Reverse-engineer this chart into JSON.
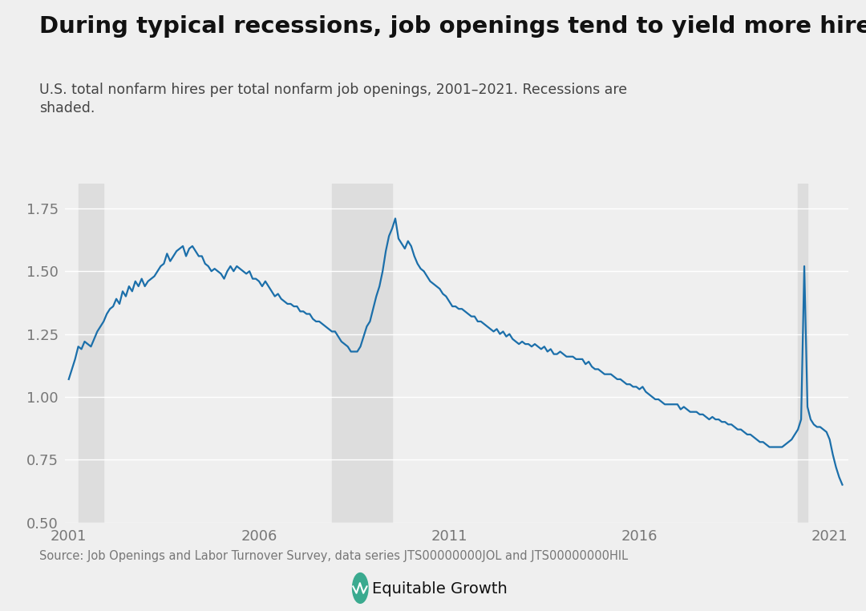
{
  "title": "During typical recessions, job openings tend to yield more hires",
  "subtitle": "U.S. total nonfarm hires per total nonfarm job openings, 2001–2021. Recessions are\nshaded.",
  "source": "Source: Job Openings and Labor Turnover Survey, data series JTS00000000JOL and JTS00000000HIL",
  "line_color": "#1b6faa",
  "line_width": 1.6,
  "recession_color": "#dddddd",
  "background_color": "#efefef",
  "recessions": [
    {
      "start": 2001.25,
      "end": 2001.9167
    },
    {
      "start": 2007.9167,
      "end": 2009.5
    },
    {
      "start": 2020.1667,
      "end": 2020.4167
    }
  ],
  "ylim": [
    0.5,
    1.85
  ],
  "yticks": [
    0.5,
    0.75,
    1.0,
    1.25,
    1.5,
    1.75
  ],
  "xlim": [
    2000.9,
    2021.5
  ],
  "xticks": [
    2001,
    2006,
    2011,
    2016,
    2021
  ],
  "data": [
    [
      2001.0,
      1.07
    ],
    [
      2001.0833,
      1.11
    ],
    [
      2001.1667,
      1.15
    ],
    [
      2001.25,
      1.2
    ],
    [
      2001.3333,
      1.19
    ],
    [
      2001.4167,
      1.22
    ],
    [
      2001.5,
      1.21
    ],
    [
      2001.5833,
      1.2
    ],
    [
      2001.6667,
      1.23
    ],
    [
      2001.75,
      1.26
    ],
    [
      2001.8333,
      1.28
    ],
    [
      2001.9167,
      1.3
    ],
    [
      2002.0,
      1.33
    ],
    [
      2002.0833,
      1.35
    ],
    [
      2002.1667,
      1.36
    ],
    [
      2002.25,
      1.39
    ],
    [
      2002.3333,
      1.37
    ],
    [
      2002.4167,
      1.42
    ],
    [
      2002.5,
      1.4
    ],
    [
      2002.5833,
      1.44
    ],
    [
      2002.6667,
      1.42
    ],
    [
      2002.75,
      1.46
    ],
    [
      2002.8333,
      1.44
    ],
    [
      2002.9167,
      1.47
    ],
    [
      2003.0,
      1.44
    ],
    [
      2003.0833,
      1.46
    ],
    [
      2003.1667,
      1.47
    ],
    [
      2003.25,
      1.48
    ],
    [
      2003.3333,
      1.5
    ],
    [
      2003.4167,
      1.52
    ],
    [
      2003.5,
      1.53
    ],
    [
      2003.5833,
      1.57
    ],
    [
      2003.6667,
      1.54
    ],
    [
      2003.75,
      1.56
    ],
    [
      2003.8333,
      1.58
    ],
    [
      2003.9167,
      1.59
    ],
    [
      2004.0,
      1.6
    ],
    [
      2004.0833,
      1.56
    ],
    [
      2004.1667,
      1.59
    ],
    [
      2004.25,
      1.6
    ],
    [
      2004.3333,
      1.58
    ],
    [
      2004.4167,
      1.56
    ],
    [
      2004.5,
      1.56
    ],
    [
      2004.5833,
      1.53
    ],
    [
      2004.6667,
      1.52
    ],
    [
      2004.75,
      1.5
    ],
    [
      2004.8333,
      1.51
    ],
    [
      2004.9167,
      1.5
    ],
    [
      2005.0,
      1.49
    ],
    [
      2005.0833,
      1.47
    ],
    [
      2005.1667,
      1.5
    ],
    [
      2005.25,
      1.52
    ],
    [
      2005.3333,
      1.5
    ],
    [
      2005.4167,
      1.52
    ],
    [
      2005.5,
      1.51
    ],
    [
      2005.5833,
      1.5
    ],
    [
      2005.6667,
      1.49
    ],
    [
      2005.75,
      1.5
    ],
    [
      2005.8333,
      1.47
    ],
    [
      2005.9167,
      1.47
    ],
    [
      2006.0,
      1.46
    ],
    [
      2006.0833,
      1.44
    ],
    [
      2006.1667,
      1.46
    ],
    [
      2006.25,
      1.44
    ],
    [
      2006.3333,
      1.42
    ],
    [
      2006.4167,
      1.4
    ],
    [
      2006.5,
      1.41
    ],
    [
      2006.5833,
      1.39
    ],
    [
      2006.6667,
      1.38
    ],
    [
      2006.75,
      1.37
    ],
    [
      2006.8333,
      1.37
    ],
    [
      2006.9167,
      1.36
    ],
    [
      2007.0,
      1.36
    ],
    [
      2007.0833,
      1.34
    ],
    [
      2007.1667,
      1.34
    ],
    [
      2007.25,
      1.33
    ],
    [
      2007.3333,
      1.33
    ],
    [
      2007.4167,
      1.31
    ],
    [
      2007.5,
      1.3
    ],
    [
      2007.5833,
      1.3
    ],
    [
      2007.6667,
      1.29
    ],
    [
      2007.75,
      1.28
    ],
    [
      2007.8333,
      1.27
    ],
    [
      2007.9167,
      1.26
    ],
    [
      2008.0,
      1.26
    ],
    [
      2008.0833,
      1.24
    ],
    [
      2008.1667,
      1.22
    ],
    [
      2008.25,
      1.21
    ],
    [
      2008.3333,
      1.2
    ],
    [
      2008.4167,
      1.18
    ],
    [
      2008.5,
      1.18
    ],
    [
      2008.5833,
      1.18
    ],
    [
      2008.6667,
      1.2
    ],
    [
      2008.75,
      1.24
    ],
    [
      2008.8333,
      1.28
    ],
    [
      2008.9167,
      1.3
    ],
    [
      2009.0,
      1.35
    ],
    [
      2009.0833,
      1.4
    ],
    [
      2009.1667,
      1.44
    ],
    [
      2009.25,
      1.5
    ],
    [
      2009.3333,
      1.58
    ],
    [
      2009.4167,
      1.64
    ],
    [
      2009.5,
      1.67
    ],
    [
      2009.5833,
      1.71
    ],
    [
      2009.6667,
      1.63
    ],
    [
      2009.75,
      1.61
    ],
    [
      2009.8333,
      1.59
    ],
    [
      2009.9167,
      1.62
    ],
    [
      2010.0,
      1.6
    ],
    [
      2010.0833,
      1.56
    ],
    [
      2010.1667,
      1.53
    ],
    [
      2010.25,
      1.51
    ],
    [
      2010.3333,
      1.5
    ],
    [
      2010.4167,
      1.48
    ],
    [
      2010.5,
      1.46
    ],
    [
      2010.5833,
      1.45
    ],
    [
      2010.6667,
      1.44
    ],
    [
      2010.75,
      1.43
    ],
    [
      2010.8333,
      1.41
    ],
    [
      2010.9167,
      1.4
    ],
    [
      2011.0,
      1.38
    ],
    [
      2011.0833,
      1.36
    ],
    [
      2011.1667,
      1.36
    ],
    [
      2011.25,
      1.35
    ],
    [
      2011.3333,
      1.35
    ],
    [
      2011.4167,
      1.34
    ],
    [
      2011.5,
      1.33
    ],
    [
      2011.5833,
      1.32
    ],
    [
      2011.6667,
      1.32
    ],
    [
      2011.75,
      1.3
    ],
    [
      2011.8333,
      1.3
    ],
    [
      2011.9167,
      1.29
    ],
    [
      2012.0,
      1.28
    ],
    [
      2012.0833,
      1.27
    ],
    [
      2012.1667,
      1.26
    ],
    [
      2012.25,
      1.27
    ],
    [
      2012.3333,
      1.25
    ],
    [
      2012.4167,
      1.26
    ],
    [
      2012.5,
      1.24
    ],
    [
      2012.5833,
      1.25
    ],
    [
      2012.6667,
      1.23
    ],
    [
      2012.75,
      1.22
    ],
    [
      2012.8333,
      1.21
    ],
    [
      2012.9167,
      1.22
    ],
    [
      2013.0,
      1.21
    ],
    [
      2013.0833,
      1.21
    ],
    [
      2013.1667,
      1.2
    ],
    [
      2013.25,
      1.21
    ],
    [
      2013.3333,
      1.2
    ],
    [
      2013.4167,
      1.19
    ],
    [
      2013.5,
      1.2
    ],
    [
      2013.5833,
      1.18
    ],
    [
      2013.6667,
      1.19
    ],
    [
      2013.75,
      1.17
    ],
    [
      2013.8333,
      1.17
    ],
    [
      2013.9167,
      1.18
    ],
    [
      2014.0,
      1.17
    ],
    [
      2014.0833,
      1.16
    ],
    [
      2014.1667,
      1.16
    ],
    [
      2014.25,
      1.16
    ],
    [
      2014.3333,
      1.15
    ],
    [
      2014.4167,
      1.15
    ],
    [
      2014.5,
      1.15
    ],
    [
      2014.5833,
      1.13
    ],
    [
      2014.6667,
      1.14
    ],
    [
      2014.75,
      1.12
    ],
    [
      2014.8333,
      1.11
    ],
    [
      2014.9167,
      1.11
    ],
    [
      2015.0,
      1.1
    ],
    [
      2015.0833,
      1.09
    ],
    [
      2015.1667,
      1.09
    ],
    [
      2015.25,
      1.09
    ],
    [
      2015.3333,
      1.08
    ],
    [
      2015.4167,
      1.07
    ],
    [
      2015.5,
      1.07
    ],
    [
      2015.5833,
      1.06
    ],
    [
      2015.6667,
      1.05
    ],
    [
      2015.75,
      1.05
    ],
    [
      2015.8333,
      1.04
    ],
    [
      2015.9167,
      1.04
    ],
    [
      2016.0,
      1.03
    ],
    [
      2016.0833,
      1.04
    ],
    [
      2016.1667,
      1.02
    ],
    [
      2016.25,
      1.01
    ],
    [
      2016.3333,
      1.0
    ],
    [
      2016.4167,
      0.99
    ],
    [
      2016.5,
      0.99
    ],
    [
      2016.5833,
      0.98
    ],
    [
      2016.6667,
      0.97
    ],
    [
      2016.75,
      0.97
    ],
    [
      2016.8333,
      0.97
    ],
    [
      2016.9167,
      0.97
    ],
    [
      2017.0,
      0.97
    ],
    [
      2017.0833,
      0.95
    ],
    [
      2017.1667,
      0.96
    ],
    [
      2017.25,
      0.95
    ],
    [
      2017.3333,
      0.94
    ],
    [
      2017.4167,
      0.94
    ],
    [
      2017.5,
      0.94
    ],
    [
      2017.5833,
      0.93
    ],
    [
      2017.6667,
      0.93
    ],
    [
      2017.75,
      0.92
    ],
    [
      2017.8333,
      0.91
    ],
    [
      2017.9167,
      0.92
    ],
    [
      2018.0,
      0.91
    ],
    [
      2018.0833,
      0.91
    ],
    [
      2018.1667,
      0.9
    ],
    [
      2018.25,
      0.9
    ],
    [
      2018.3333,
      0.89
    ],
    [
      2018.4167,
      0.89
    ],
    [
      2018.5,
      0.88
    ],
    [
      2018.5833,
      0.87
    ],
    [
      2018.6667,
      0.87
    ],
    [
      2018.75,
      0.86
    ],
    [
      2018.8333,
      0.85
    ],
    [
      2018.9167,
      0.85
    ],
    [
      2019.0,
      0.84
    ],
    [
      2019.0833,
      0.83
    ],
    [
      2019.1667,
      0.82
    ],
    [
      2019.25,
      0.82
    ],
    [
      2019.3333,
      0.81
    ],
    [
      2019.4167,
      0.8
    ],
    [
      2019.5,
      0.8
    ],
    [
      2019.5833,
      0.8
    ],
    [
      2019.6667,
      0.8
    ],
    [
      2019.75,
      0.8
    ],
    [
      2019.8333,
      0.81
    ],
    [
      2019.9167,
      0.82
    ],
    [
      2020.0,
      0.83
    ],
    [
      2020.0833,
      0.85
    ],
    [
      2020.1667,
      0.87
    ],
    [
      2020.25,
      0.91
    ],
    [
      2020.3333,
      1.52
    ],
    [
      2020.4167,
      0.96
    ],
    [
      2020.5,
      0.91
    ],
    [
      2020.5833,
      0.89
    ],
    [
      2020.6667,
      0.88
    ],
    [
      2020.75,
      0.88
    ],
    [
      2020.8333,
      0.87
    ],
    [
      2020.9167,
      0.86
    ],
    [
      2021.0,
      0.83
    ],
    [
      2021.0833,
      0.77
    ],
    [
      2021.1667,
      0.72
    ],
    [
      2021.25,
      0.68
    ],
    [
      2021.3333,
      0.65
    ]
  ]
}
